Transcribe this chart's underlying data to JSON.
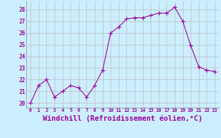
{
  "x": [
    0,
    1,
    2,
    3,
    4,
    5,
    6,
    7,
    8,
    9,
    10,
    11,
    12,
    13,
    14,
    15,
    16,
    17,
    18,
    19,
    20,
    21,
    22,
    23
  ],
  "y": [
    20.0,
    21.5,
    22.0,
    20.5,
    21.0,
    21.5,
    21.3,
    20.5,
    21.5,
    22.8,
    26.0,
    26.5,
    27.2,
    27.3,
    27.3,
    27.5,
    27.7,
    27.7,
    28.2,
    27.0,
    24.9,
    23.1,
    22.8,
    22.7
  ],
  "line_color": "#990099",
  "marker": "+",
  "marker_size": 4,
  "background_color": "#cceeff",
  "grid_color": "#bbbbbb",
  "xlabel": "Windchill (Refroidissement éolien,°C)",
  "xlabel_fontsize": 7.5,
  "tick_color": "#990099",
  "ylabel_ticks": [
    20,
    21,
    22,
    23,
    24,
    25,
    26,
    27,
    28
  ],
  "xticks": [
    0,
    1,
    2,
    3,
    4,
    5,
    6,
    7,
    8,
    9,
    10,
    11,
    12,
    13,
    14,
    15,
    16,
    17,
    18,
    19,
    20,
    21,
    22,
    23
  ],
  "ylim": [
    19.6,
    28.7
  ],
  "xlim": [
    -0.5,
    23.5
  ]
}
